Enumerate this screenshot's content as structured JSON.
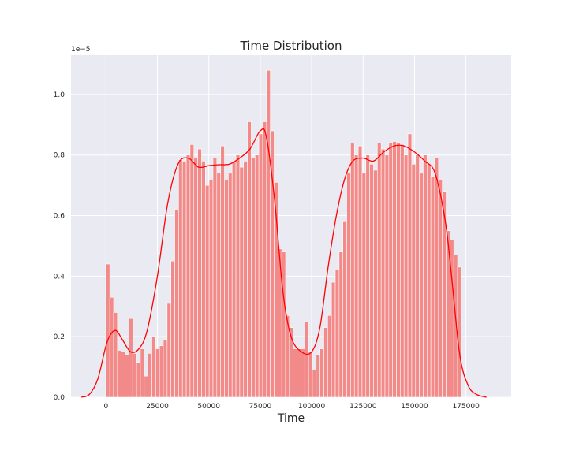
{
  "chart_data": {
    "type": "bar",
    "title": "Time Distribution",
    "xlabel": "Time",
    "ylabel": "",
    "y_scale_label": "1e−5",
    "y_scale_factor": 1e-05,
    "xlim": [
      -17000,
      197000
    ],
    "ylim": [
      0,
      1.13
    ],
    "x_ticks": [
      0,
      25000,
      50000,
      75000,
      100000,
      125000,
      150000,
      175000
    ],
    "y_ticks": [
      0.0,
      0.2,
      0.4,
      0.6,
      0.8,
      1.0
    ],
    "y_tick_format_decimals": 1,
    "grid": true,
    "legend": "none",
    "colors": {
      "background": "#eaeaf2",
      "bars": "#f28a8a",
      "kde": "#ff0000",
      "grid": "#ffffff"
    },
    "histogram": {
      "range": [
        0,
        172800
      ],
      "values": [
        0.44,
        0.33,
        0.28,
        0.155,
        0.15,
        0.14,
        0.26,
        0.145,
        0.115,
        0.16,
        0.07,
        0.145,
        0.2,
        0.16,
        0.17,
        0.19,
        0.31,
        0.45,
        0.62,
        0.785,
        0.78,
        0.8,
        0.835,
        0.79,
        0.82,
        0.78,
        0.7,
        0.72,
        0.79,
        0.74,
        0.83,
        0.72,
        0.74,
        0.78,
        0.8,
        0.76,
        0.78,
        0.91,
        0.79,
        0.8,
        0.87,
        0.91,
        1.08,
        0.88,
        0.71,
        0.49,
        0.48,
        0.27,
        0.23,
        0.16,
        0.16,
        0.16,
        0.25,
        0.15,
        0.09,
        0.14,
        0.16,
        0.23,
        0.27,
        0.38,
        0.42,
        0.48,
        0.58,
        0.74,
        0.84,
        0.8,
        0.83,
        0.74,
        0.8,
        0.77,
        0.75,
        0.84,
        0.82,
        0.8,
        0.84,
        0.845,
        0.84,
        0.835,
        0.8,
        0.87,
        0.77,
        0.8,
        0.74,
        0.8,
        0.77,
        0.73,
        0.79,
        0.72,
        0.68,
        0.55,
        0.52,
        0.47,
        0.43
      ]
    },
    "kde": {
      "x": [
        -12000,
        -8000,
        -4000,
        0,
        2500,
        5000,
        8000,
        12000,
        16000,
        20000,
        25000,
        30000,
        35000,
        40000,
        45000,
        50000,
        55000,
        60000,
        65000,
        70000,
        75000,
        78000,
        82000,
        86000,
        90000,
        95000,
        100000,
        104000,
        108000,
        112000,
        116000,
        120000,
        125000,
        130000,
        135000,
        140000,
        145000,
        150000,
        155000,
        160000,
        165000,
        168000,
        172000,
        176000,
        180000,
        185000
      ],
      "y": [
        0.0,
        0.01,
        0.06,
        0.17,
        0.21,
        0.22,
        0.19,
        0.15,
        0.16,
        0.22,
        0.4,
        0.64,
        0.77,
        0.79,
        0.76,
        0.765,
        0.768,
        0.77,
        0.79,
        0.82,
        0.88,
        0.86,
        0.65,
        0.35,
        0.2,
        0.15,
        0.15,
        0.23,
        0.43,
        0.6,
        0.72,
        0.78,
        0.79,
        0.78,
        0.81,
        0.83,
        0.83,
        0.81,
        0.78,
        0.74,
        0.58,
        0.4,
        0.14,
        0.04,
        0.01,
        0.0
      ]
    }
  }
}
